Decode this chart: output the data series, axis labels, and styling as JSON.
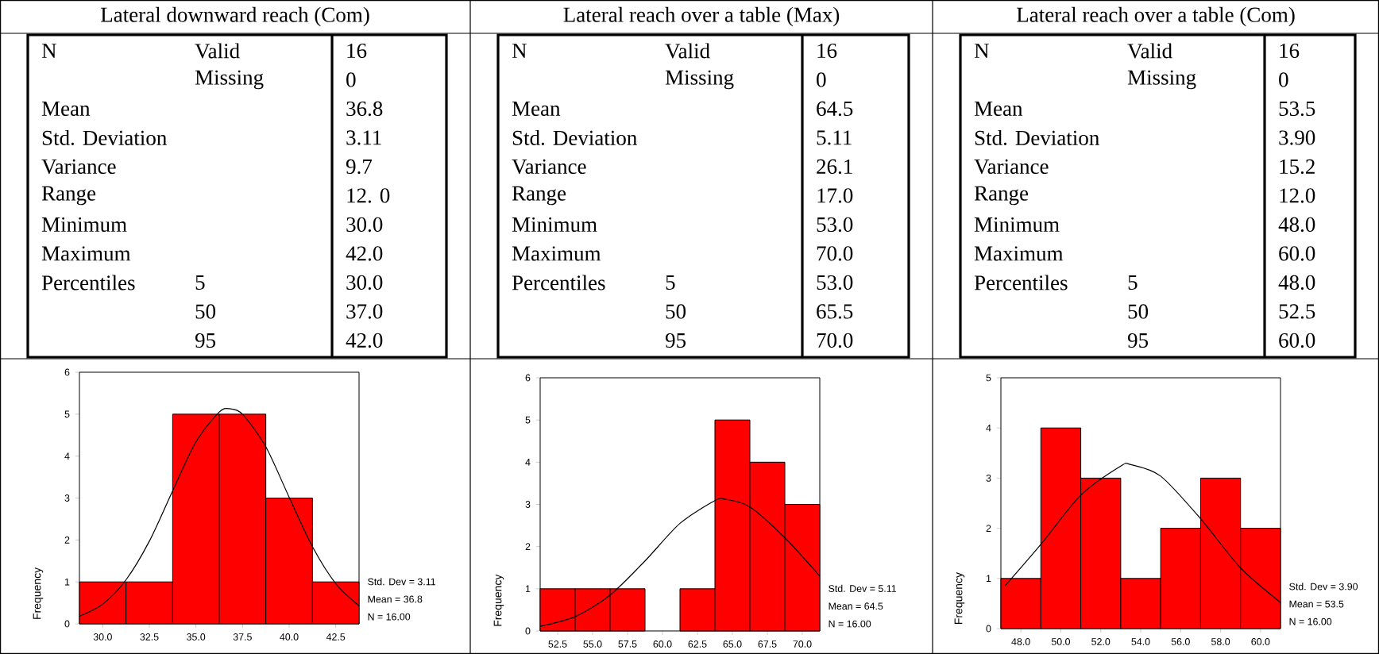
{
  "chart_data": [
    {
      "type": "other",
      "title": "Lateral downward reach (Com)",
      "annotations": [
        "N",
        "Valid",
        "16",
        "Missing",
        "0",
        "Mean",
        "36.8",
        "Std. Deviation",
        "3.11",
        "Variance",
        "9.7",
        "Range",
        "12. 0",
        "Minimum",
        "30.0",
        "Maximum",
        "42.0",
        "Percentiles",
        "5",
        "30.0",
        "50",
        "37.0",
        "95",
        "42.0"
      ]
    },
    {
      "type": "other",
      "title": "Lateral reach over a table (Max)",
      "annotations": [
        "N",
        "Valid",
        "16",
        "Missing",
        "0",
        "Mean",
        "64.5",
        "Std. Deviation",
        "5.11",
        "Variance",
        "26.1",
        "Range",
        "17.0",
        "Minimum",
        "53.0",
        "Maximum",
        "70.0",
        "Percentiles",
        "5",
        "53.0",
        "50",
        "65.5",
        "95",
        "70.0"
      ]
    },
    {
      "type": "other",
      "title": "Lateral reach over a table (Com)",
      "annotations": [
        "N",
        "Valid",
        "16",
        "Missing",
        "0",
        "Mean",
        "53.5",
        "Std. Deviation",
        "3.90",
        "Variance",
        "15.2",
        "Range",
        "12.0",
        "Minimum",
        "48.0",
        "Maximum",
        "60.0",
        "Percentiles",
        "5",
        "48.0",
        "50",
        "52.5",
        "95",
        "60.0"
      ]
    },
    {
      "type": "histogram",
      "ylabel": "Frequency",
      "xlim": [
        28.75,
        43.75
      ],
      "ylim": [
        0,
        6
      ],
      "yticks": [
        0,
        1,
        2,
        3,
        4,
        5,
        6
      ],
      "xticks": [
        {
          "value": 30,
          "label": "30.0"
        },
        {
          "value": 32.5,
          "label": "32.5"
        },
        {
          "value": 35,
          "label": "35.0"
        },
        {
          "value": 37.5,
          "label": "37.5"
        },
        {
          "value": 40,
          "label": "40.0"
        },
        {
          "value": 42.5,
          "label": "42.5"
        }
      ],
      "series": [
        {
          "type": "histogram",
          "color": "#ff0000",
          "bins": [
            28.75,
            31.25,
            33.75,
            36.25,
            38.75,
            41.25,
            43.75
          ],
          "values": [
            1,
            1,
            5,
            5,
            3,
            1
          ]
        },
        {
          "type": "line",
          "color": "#000000",
          "x": [
            28.75,
            30,
            31.25,
            32.5,
            33.75,
            35,
            36.25,
            36.8,
            37.5,
            38.75,
            40,
            41.25,
            42.5,
            43.75
          ],
          "values": [
            0.18,
            0.47,
            1.05,
            1.97,
            3.17,
            4.34,
            5.05,
            5.13,
            5.0,
            4.22,
            3.02,
            1.84,
            0.96,
            0.43
          ]
        }
      ],
      "annotations": [
        "Std. Dev = 3.11",
        "Mean = 36.8",
        "N = 16.00"
      ]
    },
    {
      "type": "histogram",
      "ylabel": "Frequency",
      "xlim": [
        51.25,
        71.25
      ],
      "ylim": [
        0,
        6
      ],
      "yticks": [
        0,
        1,
        2,
        3,
        4,
        5,
        6
      ],
      "xticks": [
        {
          "value": 52.5,
          "label": "52.5"
        },
        {
          "value": 55,
          "label": "55.0"
        },
        {
          "value": 57.5,
          "label": "57.5"
        },
        {
          "value": 60,
          "label": "60.0"
        },
        {
          "value": 62.5,
          "label": "62.5"
        },
        {
          "value": 65,
          "label": "65.0"
        },
        {
          "value": 67.5,
          "label": "67.5"
        },
        {
          "value": 70,
          "label": "70.0"
        }
      ],
      "series": [
        {
          "type": "histogram",
          "color": "#ff0000",
          "bins": [
            51.25,
            53.75,
            56.25,
            58.75,
            61.25,
            63.75,
            66.25,
            68.75,
            71.25
          ],
          "values": [
            1,
            1,
            1,
            0,
            1,
            5,
            4,
            3
          ]
        },
        {
          "type": "line",
          "color": "#000000",
          "x": [
            51.25,
            53.75,
            56.25,
            58.75,
            61.25,
            63.75,
            64.5,
            66.25,
            68.75,
            71.25
          ],
          "values": [
            0.11,
            0.34,
            0.85,
            1.66,
            2.55,
            3.09,
            3.12,
            2.94,
            2.21,
            1.3
          ]
        }
      ],
      "annotations": [
        "Std. Dev = 5.11",
        "Mean = 64.5",
        "N = 16.00"
      ]
    },
    {
      "type": "histogram",
      "ylabel": "Frequency",
      "xlim": [
        47,
        61
      ],
      "ylim": [
        0,
        5
      ],
      "yticks": [
        0,
        1,
        2,
        3,
        4,
        5
      ],
      "xticks": [
        {
          "value": 48,
          "label": "48.0"
        },
        {
          "value": 50,
          "label": "50.0"
        },
        {
          "value": 52,
          "label": "52.0"
        },
        {
          "value": 54,
          "label": "54.0"
        },
        {
          "value": 56,
          "label": "56.0"
        },
        {
          "value": 58,
          "label": "58.0"
        },
        {
          "value": 60,
          "label": "60.0"
        }
      ],
      "series": [
        {
          "type": "histogram",
          "color": "#ff0000",
          "bins": [
            47,
            49,
            51,
            53,
            55,
            57,
            59,
            61
          ],
          "values": [
            1,
            4,
            3,
            1,
            2,
            3,
            2
          ]
        },
        {
          "type": "line",
          "color": "#000000",
          "x": [
            47.2,
            49,
            51,
            53,
            53.5,
            55,
            57,
            59,
            61
          ],
          "values": [
            0.85,
            1.68,
            2.66,
            3.24,
            3.27,
            3.04,
            2.19,
            1.21,
            0.52
          ]
        }
      ],
      "annotations": [
        "Std. Dev = 3.90",
        "Mean = 53.5",
        "N = 16.00"
      ]
    }
  ]
}
